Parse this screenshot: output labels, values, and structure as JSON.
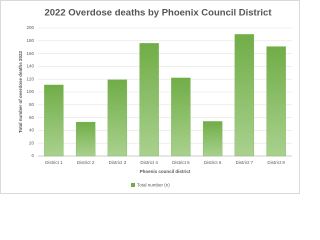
{
  "chart_data": {
    "type": "bar",
    "title": "2022 Overdose deaths by Phoenix Council District",
    "x_label": "Phoenix council district",
    "y_label": "Total number of overdose deaths 2022",
    "categories": [
      "District 1",
      "District 2",
      "District 3",
      "District 4",
      "District 5",
      "District 6",
      "District 7",
      "District 8"
    ],
    "series": [
      {
        "name": "Total number (n)",
        "color": "#70ad47",
        "values": [
          111,
          53,
          119,
          176,
          122,
          54,
          190,
          171
        ]
      }
    ],
    "ylim": [
      0,
      200
    ],
    "yticks": [
      0,
      20,
      40,
      60,
      80,
      100,
      120,
      140,
      160,
      180,
      200
    ],
    "grid": true,
    "legend": "bottom"
  }
}
